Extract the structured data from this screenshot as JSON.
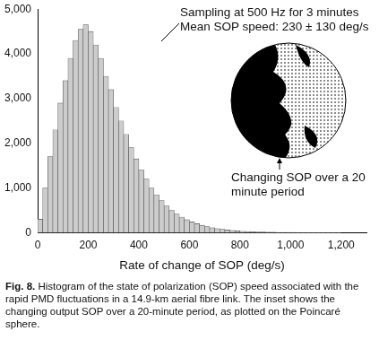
{
  "chart_data": {
    "type": "histogram",
    "x_label": "Rate of change of SOP (deg/s)",
    "annotations": [
      "Sampling at 500 Hz for 3 minutes",
      "Mean SOP speed: 230 ± 130 deg/s",
      "Changing SOP over a 20 minute period"
    ],
    "bins": [
      0,
      20,
      40,
      60,
      80,
      100,
      120,
      140,
      160,
      180,
      200,
      220,
      240,
      260,
      280,
      300,
      320,
      340,
      360,
      380,
      400,
      420,
      440,
      460,
      480,
      500,
      520,
      540,
      560,
      580,
      600,
      620,
      640,
      660,
      680,
      700,
      720,
      740,
      760,
      780,
      800,
      820,
      840,
      860,
      880,
      900,
      920,
      940,
      960,
      980,
      1000,
      1020,
      1040,
      1060,
      1080,
      1100,
      1120,
      1140,
      1160,
      1180,
      1200
    ],
    "values": [
      300,
      1000,
      1700,
      2300,
      2900,
      3400,
      3900,
      4300,
      4550,
      4650,
      4500,
      4200,
      3900,
      3500,
      3200,
      2800,
      2500,
      2200,
      1900,
      1650,
      1400,
      1200,
      1000,
      850,
      720,
      600,
      500,
      420,
      350,
      290,
      240,
      200,
      165,
      135,
      110,
      90,
      75,
      60,
      50,
      40,
      33,
      27,
      22,
      18,
      14,
      11,
      9,
      7,
      6,
      5,
      4,
      3,
      3,
      2,
      2,
      1,
      1,
      1,
      1,
      1
    ],
    "color": "#cccccc",
    "xlim": [
      0,
      1300
    ],
    "xticks": [
      0,
      200,
      400,
      600,
      800,
      1000,
      1200
    ],
    "ylim": [
      0,
      5000
    ],
    "yticks": [
      0,
      1000,
      2000,
      3000,
      4000,
      5000
    ],
    "grid": false
  },
  "caption": {
    "label": "Fig. 8.",
    "text": "Histogram of the state of polarization (SOP) speed associated with the rapid PMD fluctuations in a 14.9-km aerial fibre link. The inset shows the changing output SOP over a 20-minute period, as plotted on the Poincaré sphere."
  }
}
